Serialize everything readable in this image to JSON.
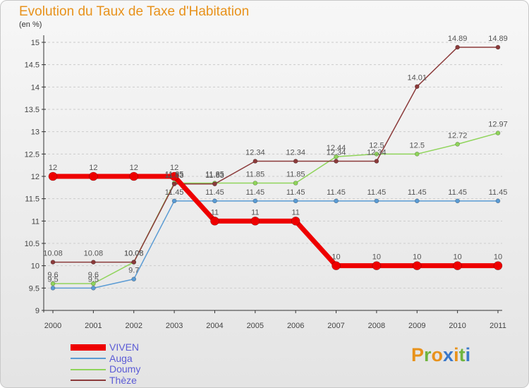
{
  "title": "Evolution du Taux de Taxe d'Habitation",
  "unit_label": "(en %)",
  "brand": {
    "text": "Proxiti",
    "letter_colors": [
      "#e8921b",
      "#6fb43f",
      "#e8921b",
      "#3a78c9",
      "#e8921b",
      "#6fb43f",
      "#3a78c9"
    ]
  },
  "colors": {
    "axis": "#333333",
    "tick_text": "#444444",
    "value_text": "#555555",
    "grid": "#cccccc"
  },
  "chart_data": {
    "type": "line",
    "title": "Evolution du Taux de Taxe d'Habitation",
    "ylabel": "(en %)",
    "xlabel": "",
    "x": [
      "2000",
      "2001",
      "2002",
      "2003",
      "2004",
      "2005",
      "2006",
      "2007",
      "2008",
      "2009",
      "2010",
      "2011"
    ],
    "ylim": [
      9,
      15
    ],
    "yticks": [
      "9",
      "9.5",
      "10",
      "10.5",
      "11",
      "11.5",
      "12",
      "12.5",
      "13",
      "13.5",
      "14",
      "14.5",
      "15"
    ],
    "grid": "horizontal dashed",
    "legend": "bottom-left",
    "series": [
      {
        "name": "VIVEN",
        "color": "#ee0000",
        "width": 7,
        "marker_r": 6,
        "values": [
          12,
          12,
          12,
          12,
          11,
          11,
          11,
          10,
          10,
          10,
          10,
          10
        ],
        "labels": [
          "12",
          "12",
          "12",
          "12",
          "11",
          "11",
          "11",
          "10",
          "10",
          "10",
          "10",
          "10"
        ]
      },
      {
        "name": "Auga",
        "color": "#5a9bd4",
        "width": 1.5,
        "marker_r": 3,
        "values": [
          9.5,
          9.5,
          9.7,
          11.45,
          11.45,
          11.45,
          11.45,
          11.45,
          11.45,
          11.45,
          11.45,
          11.45
        ],
        "labels": [
          "9.5",
          "9.5",
          "9.7",
          "11.45",
          "11.45",
          "11.45",
          "11.45",
          "11.45",
          "11.45",
          "11.45",
          "11.45",
          "11.45"
        ]
      },
      {
        "name": "Doumy",
        "color": "#8fd45a",
        "width": 1.5,
        "marker_r": 3,
        "values": [
          9.6,
          9.6,
          10.08,
          11.85,
          11.85,
          11.85,
          11.85,
          12.44,
          12.5,
          12.5,
          12.72,
          12.97
        ],
        "labels": [
          "9.6",
          "9.6",
          "10.08",
          "11.85",
          "11.85",
          "11.85",
          "11.85",
          "12.44",
          "12.5",
          "12.5",
          "12.72",
          "12.97"
        ]
      },
      {
        "name": "Thèze",
        "color": "#8b3a3a",
        "width": 1.5,
        "marker_r": 3,
        "values": [
          10.08,
          10.08,
          10.08,
          11.83,
          11.83,
          12.34,
          12.34,
          12.34,
          12.34,
          14.01,
          14.89,
          14.89
        ],
        "labels": [
          "10.08",
          "10.08",
          "10.08",
          "11.83",
          "11.83",
          "12.34",
          "12.34",
          "12.34",
          "12.34",
          "14.01",
          "14.89",
          "14.89"
        ]
      }
    ]
  }
}
